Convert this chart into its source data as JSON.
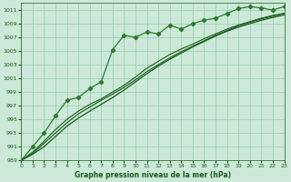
{
  "title": "Graphe pression niveau de la mer (hPa)",
  "bg_color": "#cce8d8",
  "grid_color": "#99ccb0",
  "line_color_dark": "#1a5c1a",
  "line_color_mid": "#2d7a2d",
  "xlim": [
    0,
    23
  ],
  "ylim": [
    989,
    1012
  ],
  "yticks": [
    989,
    991,
    993,
    995,
    997,
    999,
    1001,
    1003,
    1005,
    1007,
    1009,
    1011
  ],
  "xticks": [
    0,
    1,
    2,
    3,
    4,
    5,
    6,
    7,
    8,
    9,
    10,
    11,
    12,
    13,
    14,
    15,
    16,
    17,
    18,
    19,
    20,
    21,
    22,
    23
  ],
  "hours": [
    0,
    1,
    2,
    3,
    4,
    5,
    6,
    7,
    8,
    9,
    10,
    11,
    12,
    13,
    14,
    15,
    16,
    17,
    18,
    19,
    20,
    21,
    22,
    23
  ],
  "pressure_main": [
    989.0,
    991.0,
    993.0,
    995.5,
    997.8,
    998.2,
    999.5,
    1000.5,
    1005.2,
    1007.3,
    1007.0,
    1007.8,
    1007.5,
    1008.8,
    1008.2,
    1009.0,
    1009.5,
    1009.8,
    1010.5,
    1011.2,
    1011.5,
    1011.3,
    1011.0,
    1011.5
  ],
  "pressure_line2": [
    989.0,
    990.2,
    991.8,
    993.5,
    995.0,
    996.2,
    997.2,
    998.0,
    999.0,
    1000.0,
    1001.2,
    1002.5,
    1003.5,
    1004.5,
    1005.3,
    1006.0,
    1006.8,
    1007.5,
    1008.2,
    1008.8,
    1009.3,
    1009.8,
    1010.2,
    1010.5
  ],
  "pressure_line3": [
    989.0,
    990.0,
    991.5,
    993.0,
    994.5,
    995.8,
    996.8,
    997.8,
    998.7,
    999.7,
    1000.8,
    1002.0,
    1003.0,
    1004.0,
    1004.9,
    1005.7,
    1006.5,
    1007.3,
    1008.0,
    1008.7,
    1009.2,
    1009.7,
    1010.1,
    1010.5
  ],
  "pressure_trend": [
    989.0,
    989.9,
    991.0,
    992.5,
    994.0,
    995.2,
    996.2,
    997.2,
    998.2,
    999.3,
    1000.5,
    1001.7,
    1002.8,
    1003.8,
    1004.7,
    1005.6,
    1006.4,
    1007.2,
    1007.9,
    1008.5,
    1009.0,
    1009.5,
    1009.9,
    1010.3
  ]
}
